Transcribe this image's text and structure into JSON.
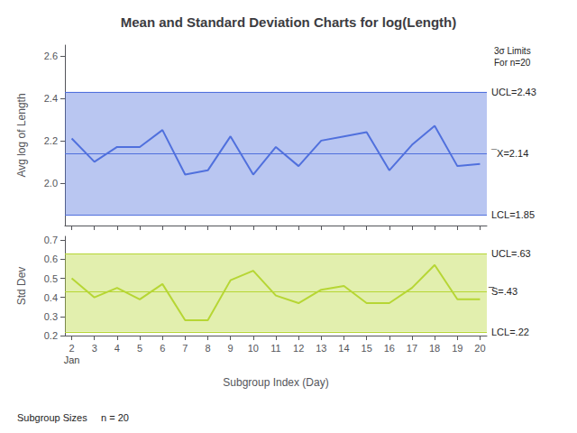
{
  "chart_data": [
    {
      "type": "line",
      "title": "Mean and Standard Deviation Charts for log(Length)",
      "ylabel": "Avg log of Length",
      "x": [
        2,
        3,
        4,
        5,
        6,
        7,
        8,
        9,
        10,
        11,
        12,
        13,
        14,
        15,
        16,
        17,
        18,
        19,
        20
      ],
      "values": [
        2.21,
        2.1,
        2.17,
        2.17,
        2.25,
        2.04,
        2.06,
        2.22,
        2.04,
        2.17,
        2.08,
        2.2,
        2.22,
        2.24,
        2.06,
        2.18,
        2.27,
        2.08,
        2.09
      ],
      "xlim": [
        1.7,
        20.3
      ],
      "xticks": [
        2,
        3,
        4,
        5,
        6,
        7,
        8,
        9,
        10,
        11,
        12,
        13,
        14,
        15,
        16,
        17,
        18,
        19,
        20
      ],
      "ylim": [
        1.8,
        2.65
      ],
      "yticks": [
        {
          "value": 2.0,
          "label": "2.0"
        },
        2.2,
        2.4,
        2.6
      ],
      "tick_labels": "y",
      "grid": false,
      "limits": {
        "ucl": 2.43,
        "cl": 2.14,
        "lcl": 1.85
      },
      "limit_labels": {
        "ucl": "UCL=2.43",
        "cl": "¯X=2.14",
        "lcl": "LCL=1.85"
      },
      "annotations": [
        {
          "text": "3σ Limits\nFor n=20"
        }
      ]
    },
    {
      "type": "line",
      "ylabel": "Std Dev",
      "xlabel": "Subgroup Index (Day)",
      "x": [
        2,
        3,
        4,
        5,
        6,
        7,
        8,
        9,
        10,
        11,
        12,
        13,
        14,
        15,
        16,
        17,
        18,
        19,
        20
      ],
      "values": [
        0.5,
        0.4,
        0.45,
        0.39,
        0.47,
        0.28,
        0.28,
        0.49,
        0.54,
        0.41,
        0.37,
        0.44,
        0.46,
        0.37,
        0.37,
        0.45,
        0.57,
        0.39,
        0.39
      ],
      "xlim": [
        1.7,
        20.3
      ],
      "xticks": [
        2,
        3,
        4,
        5,
        6,
        7,
        8,
        9,
        10,
        11,
        12,
        13,
        14,
        15,
        16,
        17,
        18,
        19,
        20
      ],
      "ylim": [
        0.2,
        0.72
      ],
      "yticks": [
        0.2,
        0.3,
        0.4,
        0.5,
        0.6,
        0.7
      ],
      "grid": false,
      "limits": {
        "ucl": 0.63,
        "cl": 0.43,
        "lcl": 0.22
      },
      "limit_labels": {
        "ucl": "UCL=.63",
        "cl": "̅S=.43",
        "lcl": "LCL=.22"
      },
      "annotations": [
        {
          "text": "Jan",
          "x": 2
        }
      ],
      "footer": [
        "Subgroup Sizes",
        "n = 20"
      ]
    }
  ]
}
